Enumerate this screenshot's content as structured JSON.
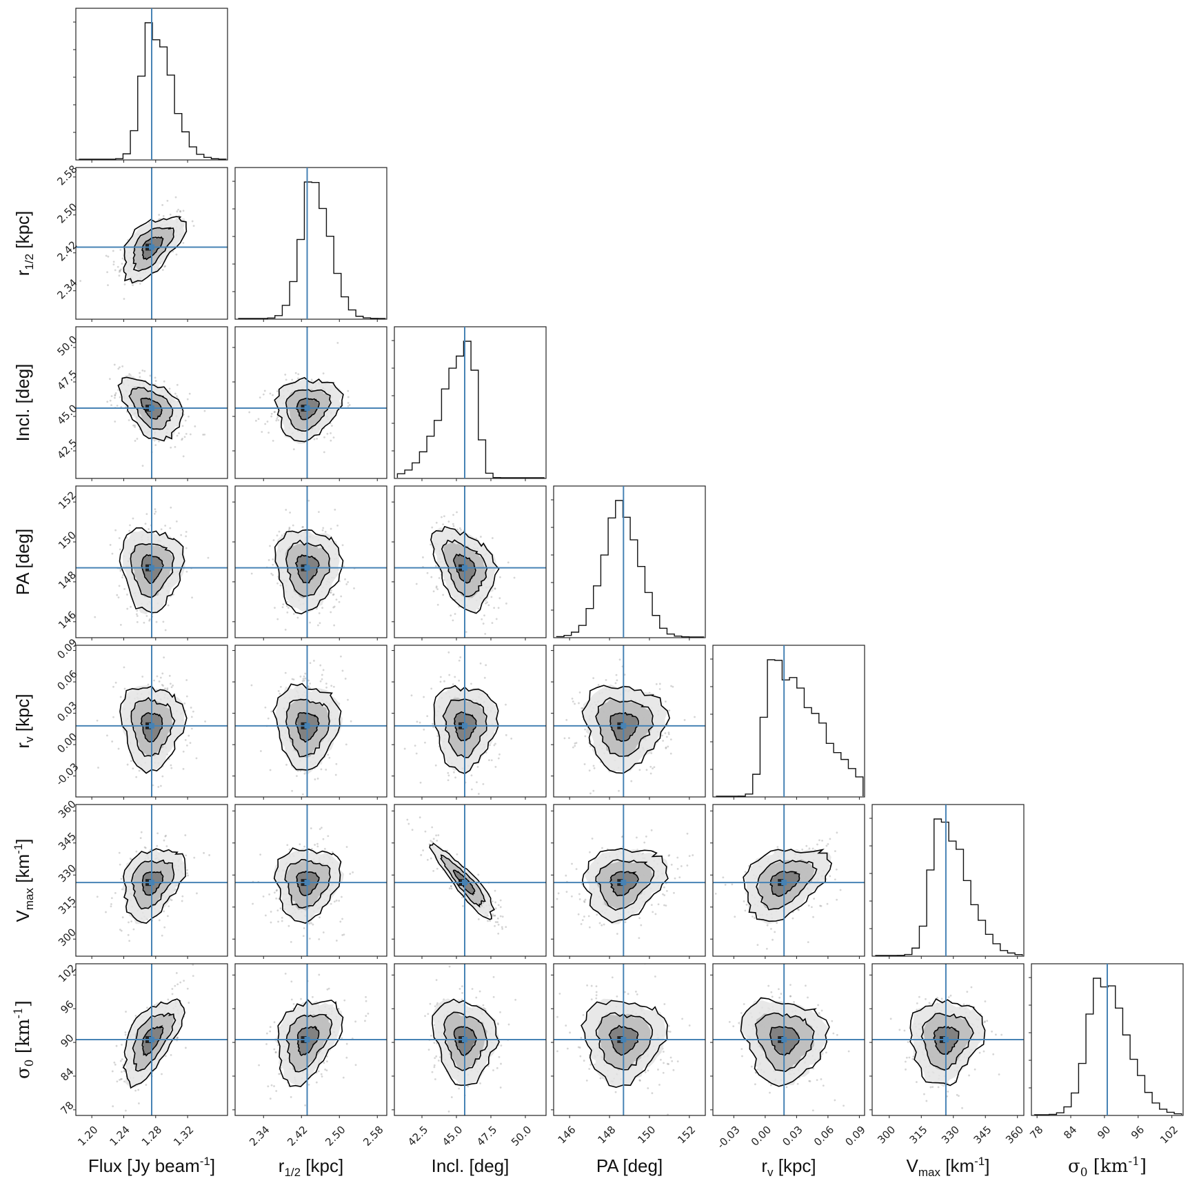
{
  "chart_data": {
    "type": "corner",
    "title": "",
    "truth_color": "#4682b4",
    "params": [
      {
        "id": "flux",
        "label": "Flux [Jy beam",
        "label_sup": "-1",
        "label_tail": "]",
        "range": [
          1.18,
          1.37
        ],
        "ticks": [
          "1.20",
          "1.24",
          "1.28",
          "1.32"
        ],
        "tick_values": [
          1.2,
          1.24,
          1.28,
          1.32
        ],
        "truth": 1.275,
        "sd": 0.017,
        "skew": 1.2,
        "hist_peak": 1.274
      },
      {
        "id": "rhalf",
        "label_main": "r",
        "label_sub": "1/2",
        "label_tail": " [kpc]",
        "range": [
          2.28,
          2.6
        ],
        "ticks": [
          "2.34",
          "2.42",
          "2.50",
          "2.58"
        ],
        "tick_values": [
          2.34,
          2.42,
          2.5,
          2.58
        ],
        "truth": 2.432,
        "sd": 0.03,
        "skew": 0.4,
        "hist_peak": 2.445
      },
      {
        "id": "incl",
        "label": "Incl. [deg]",
        "range": [
          40.5,
          51.5
        ],
        "ticks": [
          "42.5",
          "45.0",
          "47.5",
          "50.0"
        ],
        "tick_values": [
          42.5,
          45.0,
          47.5,
          50.0
        ],
        "truth": 45.6,
        "sd": 1.0,
        "skew": -2.5,
        "hist_peak": 46.0
      },
      {
        "id": "pa",
        "label": "PA [deg]",
        "range": [
          145.2,
          152.8
        ],
        "ticks": [
          "146",
          "148",
          "150",
          "152"
        ],
        "tick_values": [
          146,
          148,
          150,
          152
        ],
        "truth": 148.7,
        "sd": 0.9,
        "skew": 0.0,
        "hist_peak": 148.6
      },
      {
        "id": "rv",
        "label_main": "r",
        "label_sub": "v",
        "label_tail": " [kpc]",
        "range": [
          -0.05,
          0.095
        ],
        "ticks": [
          "-0.03",
          "0.00",
          "0.03",
          "0.06",
          "0.09"
        ],
        "tick_values": [
          -0.03,
          0.0,
          0.03,
          0.06,
          0.09
        ],
        "truth": 0.018,
        "sd": 0.018,
        "skew": 4.0,
        "hist_peak": 0.006
      },
      {
        "id": "vmax",
        "label_main": "V",
        "label_sub": "max",
        "label_tail": " [km",
        "label_sup": "-1",
        "label_tail2": "]",
        "range": [
          292,
          363
        ],
        "ticks": [
          "300",
          "315",
          "330",
          "345",
          "360"
        ],
        "tick_values": [
          300,
          315,
          330,
          345,
          360
        ],
        "truth": 326.5,
        "sd": 7.5,
        "skew": 1.6,
        "hist_peak": 324
      },
      {
        "id": "sigma0",
        "label_main": "σ",
        "label_sub": "0",
        "label_tail": " [km",
        "label_sup": "-1",
        "label_tail2": "]",
        "range": [
          77,
          104
        ],
        "ticks": [
          "78",
          "84",
          "90",
          "96",
          "102"
        ],
        "tick_values": [
          78,
          84,
          90,
          96,
          102
        ],
        "truth": 90.5,
        "sd": 3.3,
        "skew": 0.9,
        "hist_peak": 89.5
      }
    ],
    "correlations": {
      "1-0": 0.55,
      "2-0": -0.45,
      "2-1": 0.15,
      "3-0": 0.0,
      "3-1": 0.0,
      "3-2": -0.35,
      "4-0": 0.0,
      "4-1": 0.0,
      "4-2": 0.0,
      "4-3": 0.0,
      "5-0": 0.3,
      "5-1": 0.1,
      "5-2": -0.9,
      "5-3": 0.2,
      "5-4": 0.35,
      "6-0": 0.6,
      "6-1": 0.35,
      "6-2": -0.1,
      "6-3": 0.0,
      "6-4": -0.1,
      "6-5": 0.1
    },
    "contour_levels_sigma": [
      0.5,
      1.0,
      1.5
    ],
    "grid": false,
    "legend": "none"
  }
}
